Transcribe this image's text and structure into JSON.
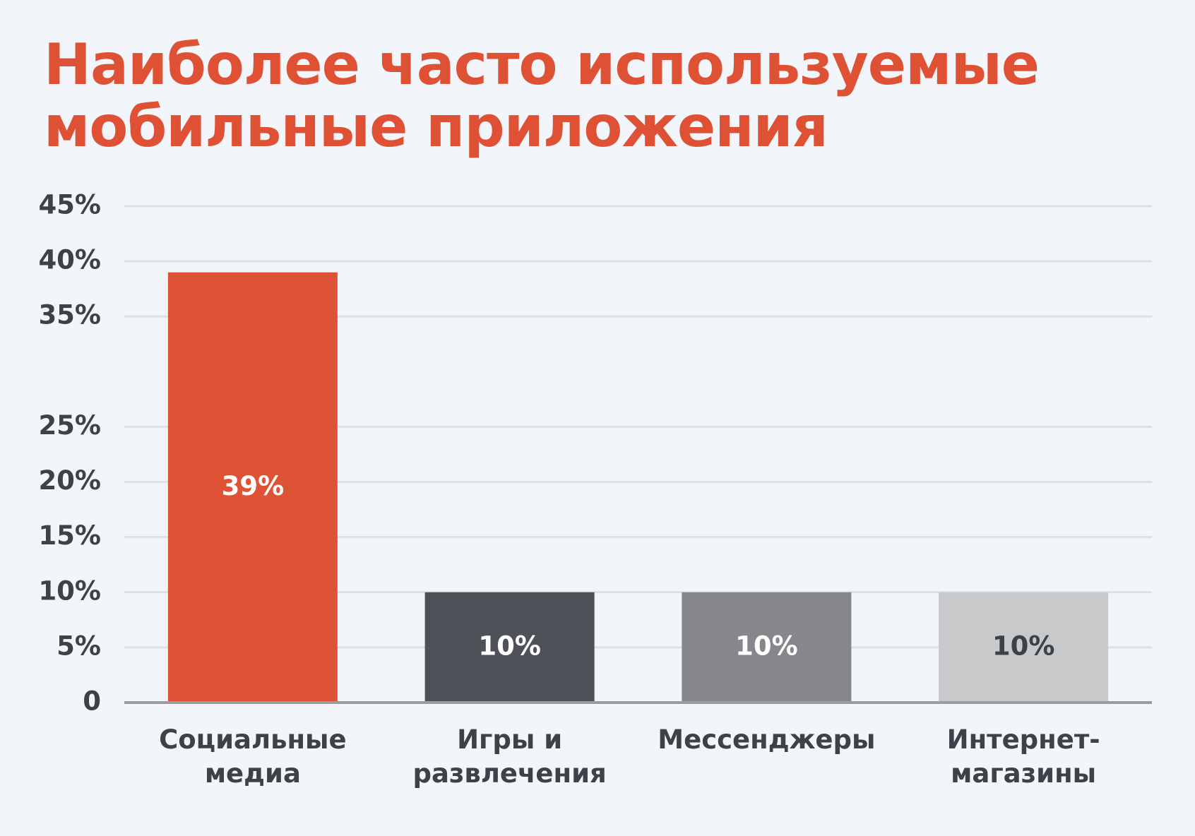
{
  "chart_data": {
    "type": "bar",
    "title": "Наиболее часто используемые мобильные приложения",
    "categories": [
      "Социальные медиа",
      "Игры и развлечения",
      "Мессенджеры",
      "Интернет-магазины"
    ],
    "values": [
      39,
      10,
      10,
      10
    ],
    "value_labels": [
      "39%",
      "10%",
      "10%",
      "10%"
    ],
    "colors": [
      "#de5235",
      "#4e5258",
      "#85878b",
      "#c8c9cb"
    ],
    "ylim": [
      0,
      45
    ],
    "yticks": [
      0,
      {
        "value": 5,
        "label": "5%"
      },
      {
        "value": 10,
        "label": "10%"
      },
      {
        "value": 15,
        "label": "15%"
      },
      {
        "value": 20,
        "label": "20%"
      },
      {
        "value": 25,
        "label": "25%"
      },
      {
        "value": 35,
        "label": "35%"
      },
      {
        "value": 40,
        "label": "40%"
      },
      {
        "value": 45,
        "label": "45%"
      }
    ],
    "grid": true
  }
}
